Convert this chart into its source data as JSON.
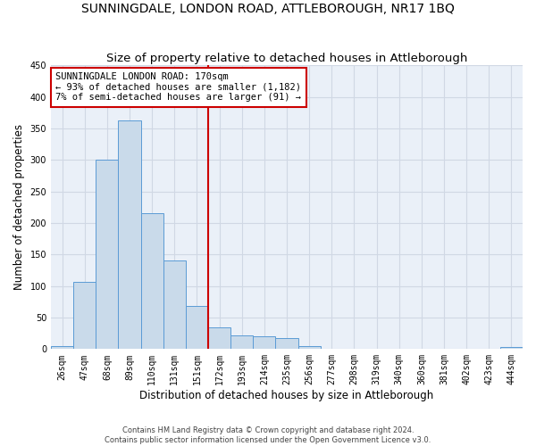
{
  "title": "SUNNINGDALE, LONDON ROAD, ATTLEBOROUGH, NR17 1BQ",
  "subtitle": "Size of property relative to detached houses in Attleborough",
  "xlabel": "Distribution of detached houses by size in Attleborough",
  "ylabel": "Number of detached properties",
  "footer_line1": "Contains HM Land Registry data © Crown copyright and database right 2024.",
  "footer_line2": "Contains public sector information licensed under the Open Government Licence v3.0.",
  "categories": [
    "26sqm",
    "47sqm",
    "68sqm",
    "89sqm",
    "110sqm",
    "131sqm",
    "151sqm",
    "172sqm",
    "193sqm",
    "214sqm",
    "235sqm",
    "256sqm",
    "277sqm",
    "298sqm",
    "319sqm",
    "340sqm",
    "360sqm",
    "381sqm",
    "402sqm",
    "423sqm",
    "444sqm"
  ],
  "values": [
    5,
    107,
    301,
    362,
    215,
    140,
    68,
    35,
    22,
    20,
    18,
    5,
    0,
    0,
    0,
    0,
    0,
    0,
    0,
    0,
    3
  ],
  "bar_color": "#c9daea",
  "bar_edge_color": "#5b9bd5",
  "grid_color": "#d0d8e4",
  "background_color": "#eaf0f8",
  "vline_color": "#cc0000",
  "annotation_box_text_line1": "SUNNINGDALE LONDON ROAD: 170sqm",
  "annotation_box_text_line2": "← 93% of detached houses are smaller (1,182)",
  "annotation_box_text_line3": "7% of semi-detached houses are larger (91) →",
  "annotation_box_color": "#cc0000",
  "ylim": [
    0,
    450
  ],
  "yticks": [
    0,
    50,
    100,
    150,
    200,
    250,
    300,
    350,
    400,
    450
  ],
  "title_fontsize": 10,
  "subtitle_fontsize": 9.5,
  "tick_fontsize": 7,
  "ylabel_fontsize": 8.5,
  "xlabel_fontsize": 8.5,
  "annotation_fontsize": 7.5
}
